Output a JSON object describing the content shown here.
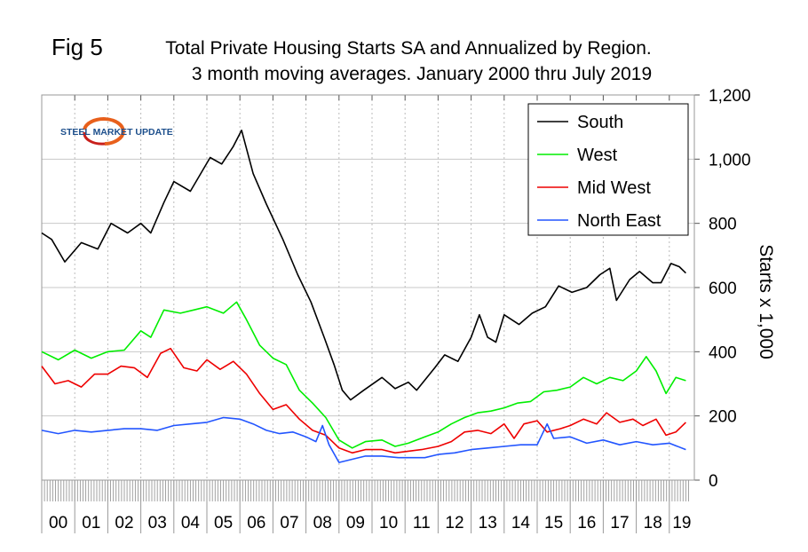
{
  "figure_label": "Fig 5",
  "logo_text": "STEEL MARKET UPDATE",
  "chart_data": {
    "type": "line",
    "title": "Total Private Housing Starts SA and Annualized by Region.",
    "subtitle": "3 month moving averages. January 2000 thru July 2019",
    "xlabel": "",
    "ylabel": "Starts x 1,000",
    "x_tick_labels": [
      "00",
      "01",
      "02",
      "03",
      "04",
      "05",
      "06",
      "07",
      "08",
      "09",
      "10",
      "11",
      "12",
      "13",
      "14",
      "15",
      "16",
      "17",
      "18",
      "19"
    ],
    "y_tick_labels": [
      "0",
      "200",
      "400",
      "600",
      "800",
      "1,000",
      "1,200"
    ],
    "y_ticks": [
      0,
      200,
      400,
      600,
      800,
      1000,
      1200
    ],
    "ylim": [
      0,
      1200
    ],
    "xlim": [
      2000.0,
      2019.58
    ],
    "y_axis_side": "right",
    "grid": true,
    "legend_position": "top-right",
    "series": [
      {
        "name": "South",
        "color": "#000000",
        "x": [
          2000.0,
          2000.3,
          2000.7,
          2001.2,
          2001.7,
          2002.1,
          2002.6,
          2003.0,
          2003.3,
          2003.7,
          2004.0,
          2004.5,
          2005.1,
          2005.45,
          2005.8,
          2006.05,
          2006.4,
          2006.8,
          2007.3,
          2007.75,
          2008.15,
          2008.55,
          2008.85,
          2009.1,
          2009.35,
          2009.75,
          2010.3,
          2010.7,
          2011.1,
          2011.35,
          2011.9,
          2012.2,
          2012.6,
          2013.0,
          2013.25,
          2013.5,
          2013.75,
          2014.0,
          2014.45,
          2014.85,
          2015.25,
          2015.65,
          2016.05,
          2016.5,
          2016.9,
          2017.2,
          2017.4,
          2017.8,
          2018.1,
          2018.5,
          2018.75,
          2019.05,
          2019.3,
          2019.5
        ],
        "y": [
          770,
          750,
          680,
          740,
          720,
          800,
          770,
          800,
          770,
          865,
          930,
          900,
          1005,
          985,
          1040,
          1090,
          955,
          860,
          750,
          640,
          555,
          445,
          360,
          280,
          250,
          280,
          320,
          285,
          305,
          280,
          350,
          390,
          370,
          445,
          515,
          445,
          430,
          515,
          485,
          520,
          540,
          605,
          585,
          600,
          640,
          660,
          560,
          625,
          650,
          615,
          615,
          675,
          665,
          645
        ]
      },
      {
        "name": "West",
        "color": "#00ee00",
        "x": [
          2000.0,
          2000.5,
          2001.0,
          2001.5,
          2002.0,
          2002.5,
          2003.0,
          2003.3,
          2003.7,
          2004.2,
          2004.6,
          2005.0,
          2005.5,
          2005.9,
          2006.2,
          2006.6,
          2007.0,
          2007.4,
          2007.8,
          2008.2,
          2008.6,
          2009.0,
          2009.4,
          2009.8,
          2010.3,
          2010.7,
          2011.1,
          2011.6,
          2012.0,
          2012.4,
          2012.8,
          2013.2,
          2013.6,
          2014.0,
          2014.4,
          2014.8,
          2015.2,
          2015.6,
          2016.0,
          2016.4,
          2016.8,
          2017.2,
          2017.6,
          2018.0,
          2018.3,
          2018.6,
          2018.9,
          2019.2,
          2019.5
        ],
        "y": [
          400,
          375,
          405,
          380,
          400,
          405,
          465,
          445,
          530,
          520,
          530,
          540,
          520,
          555,
          500,
          420,
          380,
          360,
          280,
          240,
          195,
          125,
          100,
          120,
          125,
          105,
          115,
          135,
          150,
          175,
          195,
          210,
          215,
          225,
          240,
          245,
          275,
          280,
          290,
          320,
          300,
          320,
          310,
          340,
          385,
          340,
          270,
          320,
          310
        ]
      },
      {
        "name": "Mid West",
        "color": "#ee0000",
        "x": [
          2000.0,
          2000.4,
          2000.8,
          2001.2,
          2001.6,
          2002.0,
          2002.4,
          2002.8,
          2003.2,
          2003.6,
          2003.9,
          2004.3,
          2004.7,
          2005.0,
          2005.4,
          2005.8,
          2006.2,
          2006.6,
          2007.0,
          2007.4,
          2007.8,
          2008.2,
          2008.6,
          2009.0,
          2009.4,
          2009.8,
          2010.3,
          2010.7,
          2011.1,
          2011.5,
          2012.0,
          2012.4,
          2012.8,
          2013.2,
          2013.6,
          2014.0,
          2014.3,
          2014.6,
          2015.0,
          2015.3,
          2015.7,
          2016.0,
          2016.4,
          2016.8,
          2017.1,
          2017.5,
          2017.9,
          2018.2,
          2018.6,
          2018.9,
          2019.2,
          2019.5
        ],
        "y": [
          355,
          300,
          310,
          290,
          330,
          330,
          355,
          350,
          320,
          395,
          410,
          350,
          340,
          375,
          345,
          370,
          330,
          270,
          220,
          235,
          190,
          155,
          140,
          100,
          85,
          95,
          95,
          85,
          90,
          95,
          105,
          120,
          150,
          155,
          145,
          175,
          130,
          175,
          185,
          150,
          160,
          170,
          190,
          175,
          210,
          180,
          190,
          170,
          190,
          140,
          150,
          180
        ]
      },
      {
        "name": "North East",
        "color": "#2255ff",
        "x": [
          2000.0,
          2000.5,
          2001.0,
          2001.5,
          2002.0,
          2002.5,
          2003.0,
          2003.5,
          2004.0,
          2004.5,
          2005.0,
          2005.5,
          2006.0,
          2006.4,
          2006.8,
          2007.2,
          2007.6,
          2008.0,
          2008.3,
          2008.5,
          2008.7,
          2009.0,
          2009.4,
          2009.8,
          2010.3,
          2010.8,
          2011.2,
          2011.6,
          2012.0,
          2012.5,
          2013.0,
          2013.5,
          2014.0,
          2014.5,
          2015.0,
          2015.3,
          2015.5,
          2016.0,
          2016.5,
          2017.0,
          2017.5,
          2018.0,
          2018.5,
          2019.0,
          2019.5
        ],
        "y": [
          155,
          145,
          155,
          150,
          155,
          160,
          160,
          155,
          170,
          175,
          180,
          195,
          190,
          175,
          155,
          145,
          150,
          135,
          120,
          170,
          110,
          55,
          65,
          75,
          75,
          70,
          70,
          70,
          80,
          85,
          95,
          100,
          105,
          110,
          110,
          175,
          130,
          135,
          115,
          125,
          110,
          120,
          110,
          115,
          95
        ]
      }
    ]
  }
}
